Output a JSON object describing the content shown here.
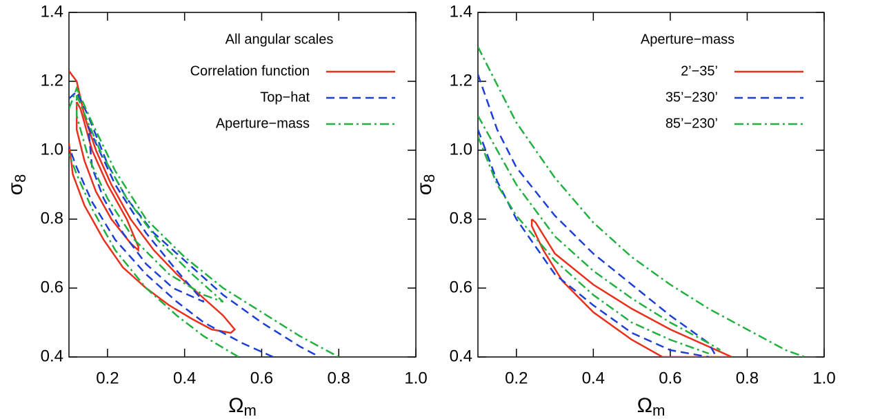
{
  "chart_data": [
    {
      "type": "contour",
      "legend_title": "All angular scales",
      "xlabel": {
        "symbol": "Ω",
        "sub": "m"
      },
      "ylabel": {
        "symbol": "σ",
        "sub": "8"
      },
      "xlim": [
        0.1,
        1.0
      ],
      "ylim": [
        0.4,
        1.4
      ],
      "xticks": [
        0.2,
        0.4,
        0.6,
        0.8,
        {
          "value": 1.0,
          "label": "1.0"
        }
      ],
      "yticks": [
        0.4,
        0.6,
        0.8,
        {
          "value": 1.0,
          "label": "1.0"
        },
        1.2,
        1.4
      ],
      "series": [
        {
          "name": "Correlation function",
          "color": "#e8301c",
          "dash": "solid",
          "contours": [
            {
              "x": [
                0.1,
                0.12,
                0.14,
                0.17,
                0.21,
                0.26,
                0.32,
                0.38,
                0.45,
                0.5,
                0.53,
                0.52,
                0.47,
                0.42,
                0.36,
                0.3,
                0.24,
                0.19,
                0.14,
                0.11,
                0.1
              ],
              "y": [
                1.23,
                1.2,
                1.1,
                1.0,
                0.9,
                0.8,
                0.71,
                0.64,
                0.57,
                0.52,
                0.48,
                0.47,
                0.48,
                0.51,
                0.55,
                0.6,
                0.66,
                0.74,
                0.84,
                0.93,
                1.02
              ]
            },
            {
              "x": [
                0.12,
                0.13,
                0.16,
                0.2,
                0.25,
                0.28,
                0.28,
                0.26,
                0.21,
                0.17,
                0.14,
                0.12,
                0.12
              ],
              "y": [
                1.14,
                1.12,
                1.0,
                0.9,
                0.8,
                0.72,
                0.71,
                0.73,
                0.8,
                0.88,
                0.97,
                1.06,
                1.14
              ]
            }
          ]
        },
        {
          "name": "Top−hat",
          "color": "#1c3fd6",
          "dash": "dashed",
          "contours": [
            {
              "x": [
                0.1,
                0.12,
                0.15,
                0.2,
                0.25,
                0.32,
                0.4,
                0.5,
                0.6,
                0.7,
                0.75
              ],
              "y": [
                1.15,
                1.17,
                1.1,
                0.96,
                0.86,
                0.76,
                0.68,
                0.58,
                0.5,
                0.43,
                0.4
              ]
            },
            {
              "x": [
                0.63,
                0.55,
                0.45,
                0.38,
                0.3,
                0.22,
                0.16,
                0.12,
                0.1
              ],
              "y": [
                0.4,
                0.44,
                0.5,
                0.56,
                0.64,
                0.74,
                0.85,
                0.95,
                1.01
              ]
            },
            {
              "x": [
                0.15,
                0.17,
                0.22,
                0.3,
                0.38,
                0.45,
                0.43,
                0.37,
                0.3,
                0.24,
                0.19,
                0.16,
                0.15
              ],
              "y": [
                1.07,
                1.02,
                0.9,
                0.76,
                0.65,
                0.56,
                0.57,
                0.6,
                0.67,
                0.76,
                0.86,
                0.95,
                1.07
              ]
            }
          ]
        },
        {
          "name": "Aperture−mass",
          "color": "#22b040",
          "dash": "dashdot",
          "contours": [
            {
              "x": [
                0.1,
                0.12,
                0.16,
                0.22,
                0.3,
                0.4,
                0.5,
                0.6,
                0.7,
                0.8
              ],
              "y": [
                1.12,
                1.18,
                1.08,
                0.94,
                0.8,
                0.69,
                0.6,
                0.53,
                0.46,
                0.4
              ]
            },
            {
              "x": [
                0.54,
                0.45,
                0.38,
                0.3,
                0.22,
                0.16,
                0.12,
                0.1
              ],
              "y": [
                0.4,
                0.46,
                0.52,
                0.6,
                0.71,
                0.83,
                0.93,
                0.99
              ]
            },
            {
              "x": [
                0.12,
                0.18,
                0.25,
                0.33,
                0.42,
                0.5,
                0.45,
                0.36,
                0.27,
                0.2,
                0.15,
                0.12,
                0.12
              ],
              "y": [
                1.16,
                1.0,
                0.86,
                0.74,
                0.64,
                0.56,
                0.58,
                0.64,
                0.74,
                0.86,
                0.98,
                1.1,
                1.16
              ]
            }
          ]
        }
      ]
    },
    {
      "type": "contour",
      "legend_title": "Aperture−mass",
      "xlabel": {
        "symbol": "Ω",
        "sub": "m"
      },
      "ylabel": {
        "symbol": "σ",
        "sub": "8"
      },
      "xlim": [
        0.1,
        1.0
      ],
      "ylim": [
        0.4,
        1.4
      ],
      "xticks": [
        0.2,
        0.4,
        0.6,
        0.8,
        {
          "value": 1.0,
          "label": "1.0"
        }
      ],
      "yticks": [
        0.4,
        0.6,
        0.8,
        {
          "value": 1.0,
          "label": "1.0"
        },
        1.2,
        1.4
      ],
      "series": [
        {
          "name": "2’−35’",
          "color": "#e8301c",
          "dash": "solid",
          "contours": [
            {
              "x": [
                0.24,
                0.25,
                0.3,
                0.4,
                0.5,
                0.6,
                0.7,
                0.76,
                0.58,
                0.5,
                0.4,
                0.32,
                0.27,
                0.24,
                0.24
              ],
              "y": [
                0.8,
                0.79,
                0.7,
                0.61,
                0.54,
                0.48,
                0.43,
                0.4,
                0.4,
                0.45,
                0.53,
                0.62,
                0.71,
                0.78,
                0.8
              ]
            }
          ]
        },
        {
          "name": "35’−230’",
          "color": "#1c3fd6",
          "dash": "dashed",
          "contours": [
            {
              "x": [
                0.1,
                0.15,
                0.2,
                0.3,
                0.4,
                0.5,
                0.6,
                0.7,
                0.72
              ],
              "y": [
                1.22,
                1.06,
                0.95,
                0.81,
                0.7,
                0.61,
                0.52,
                0.44,
                0.4
              ]
            },
            {
              "x": [
                0.1,
                0.15,
                0.2,
                0.3,
                0.4,
                0.5,
                0.6,
                0.7
              ],
              "y": [
                1.06,
                0.91,
                0.8,
                0.64,
                0.55,
                0.47,
                0.42,
                0.4
              ]
            }
          ]
        },
        {
          "name": "85’−230’",
          "color": "#22b040",
          "dash": "dashdot",
          "contours": [
            {
              "x": [
                0.1,
                0.2,
                0.3,
                0.4,
                0.5,
                0.6,
                0.7,
                0.8,
                0.9,
                0.95
              ],
              "y": [
                1.3,
                1.08,
                0.92,
                0.79,
                0.69,
                0.61,
                0.54,
                0.48,
                0.42,
                0.4
              ]
            },
            {
              "x": [
                0.1,
                0.2,
                0.3,
                0.4,
                0.5,
                0.6,
                0.7,
                0.73
              ],
              "y": [
                1.1,
                0.9,
                0.75,
                0.65,
                0.57,
                0.5,
                0.44,
                0.42
              ]
            },
            {
              "x": [
                0.1,
                0.15,
                0.2,
                0.3,
                0.4,
                0.5,
                0.6,
                0.7
              ],
              "y": [
                1.04,
                0.9,
                0.81,
                0.68,
                0.58,
                0.5,
                0.45,
                0.41
              ]
            }
          ]
        }
      ]
    }
  ]
}
